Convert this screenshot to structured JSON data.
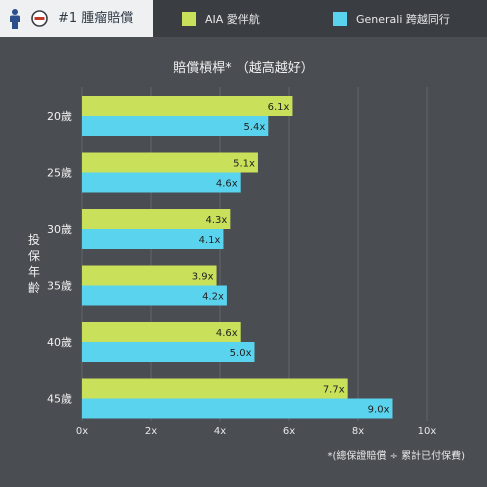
{
  "header": {
    "tab_label": "#1 腫瘤賠償",
    "person_icon": "person-icon",
    "badge_icon": "badge-icon"
  },
  "legend": [
    {
      "label": "AIA 愛伴航",
      "color": "#c8e05a"
    },
    {
      "label": "Generali 跨越同行",
      "color": "#5ad4ee"
    }
  ],
  "chart_data": {
    "type": "bar",
    "orientation": "horizontal",
    "title": "賠償槓桿*  （越高越好）",
    "xlabel": "",
    "ylabel": "投保年齡",
    "categories": [
      "20歲",
      "25歲",
      "30歲",
      "35歲",
      "40歲",
      "45歲"
    ],
    "series": [
      {
        "name": "AIA 愛伴航",
        "color": "#c8e05a",
        "values": [
          6.1,
          5.1,
          4.3,
          3.9,
          4.6,
          7.7
        ],
        "labels": [
          "6.1x",
          "5.1x",
          "4.3x",
          "3.9x",
          "4.6x",
          "7.7x"
        ]
      },
      {
        "name": "Generali 跨越同行",
        "color": "#5ad4ee",
        "values": [
          5.4,
          4.6,
          4.1,
          4.2,
          5.0,
          9.0
        ],
        "labels": [
          "5.4x",
          "4.6x",
          "4.1x",
          "4.2x",
          "5.0x",
          "9.0x"
        ]
      }
    ],
    "xlim": [
      0,
      10
    ],
    "xticks": [
      0,
      2,
      4,
      6,
      8,
      10
    ],
    "xtick_labels": [
      "0x",
      "2x",
      "4x",
      "6x",
      "8x",
      "10x"
    ],
    "grid": true,
    "legend_position": "top",
    "footnote": "*(總保證賠償 ÷ 累計已付保費)"
  }
}
